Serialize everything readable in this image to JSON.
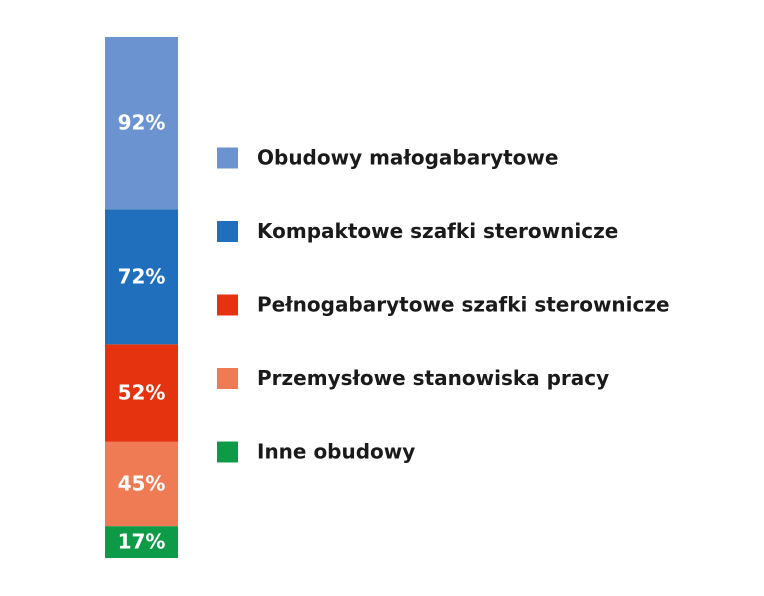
{
  "chart_data": {
    "type": "bar",
    "stacked": true,
    "categories": [
      null
    ],
    "series": [
      {
        "name": "Obudowy małogabarytowe",
        "color": "#6a93cf",
        "values": [
          92
        ],
        "value_labels": [
          "92%"
        ]
      },
      {
        "name": "Kompaktowe szafki sterownicze",
        "color": "#1f6fbd",
        "values": [
          72
        ],
        "value_labels": [
          "72%"
        ]
      },
      {
        "name": "Pełnogabarytowe szafki sterownicze",
        "color": "#e5330f",
        "values": [
          52
        ],
        "value_labels": [
          "52%"
        ]
      },
      {
        "name": "Przemysłowe stanowiska pracy",
        "color": "#ef7b55",
        "values": [
          45
        ],
        "value_labels": [
          "45%"
        ]
      },
      {
        "name": "Inne obudowy",
        "color": "#0e9b48",
        "values": [
          17
        ],
        "value_labels": [
          "17%"
        ]
      }
    ],
    "legend": "right"
  }
}
